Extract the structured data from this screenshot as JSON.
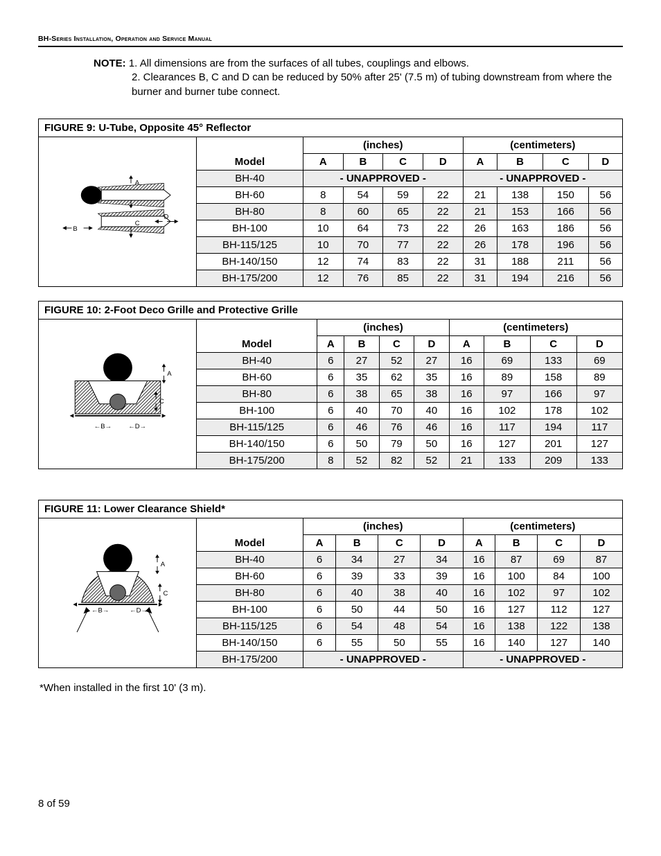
{
  "header": "BH-Series Installation, Operation and Service Manual",
  "note": {
    "prefix": "NOTE:",
    "line1": "1. All dimensions are from the surfaces of all tubes, couplings and elbows.",
    "line2": "2. Clearances B, C and D can be reduced by 50% after 25' (7.5 m) of tubing downstream from where the burner and burner tube connect."
  },
  "units": {
    "inches": "(inches)",
    "cm": "(centimeters)",
    "model": "Model"
  },
  "cols": [
    "A",
    "B",
    "C",
    "D"
  ],
  "unapproved": "- UNAPPROVED -",
  "footnote": "*When installed in the first 10' (3 m).",
  "pageNum": "8 of 59",
  "figures": [
    {
      "title": "FIGURE 9: U-Tube, Opposite 45° Reflector",
      "diagram": "fig9",
      "rows": [
        {
          "model": "BH-40",
          "unapproved": true
        },
        {
          "model": "BH-60",
          "in": [
            8,
            54,
            59,
            22
          ],
          "cm": [
            21,
            138,
            150,
            56
          ]
        },
        {
          "model": "BH-80",
          "in": [
            8,
            60,
            65,
            22
          ],
          "cm": [
            21,
            153,
            166,
            56
          ]
        },
        {
          "model": "BH-100",
          "in": [
            10,
            64,
            73,
            22
          ],
          "cm": [
            26,
            163,
            186,
            56
          ]
        },
        {
          "model": "BH-115/125",
          "in": [
            10,
            70,
            77,
            22
          ],
          "cm": [
            26,
            178,
            196,
            56
          ]
        },
        {
          "model": "BH-140/150",
          "in": [
            12,
            74,
            83,
            22
          ],
          "cm": [
            31,
            188,
            211,
            56
          ]
        },
        {
          "model": "BH-175/200",
          "in": [
            12,
            76,
            85,
            22
          ],
          "cm": [
            31,
            194,
            216,
            56
          ]
        }
      ]
    },
    {
      "title": "FIGURE 10: 2-Foot Deco Grille and Protective Grille",
      "diagram": "fig10",
      "rows": [
        {
          "model": "BH-40",
          "in": [
            6,
            27,
            52,
            27
          ],
          "cm": [
            16,
            69,
            133,
            69
          ]
        },
        {
          "model": "BH-60",
          "in": [
            6,
            35,
            62,
            35
          ],
          "cm": [
            16,
            89,
            158,
            89
          ]
        },
        {
          "model": "BH-80",
          "in": [
            6,
            38,
            65,
            38
          ],
          "cm": [
            16,
            97,
            166,
            97
          ]
        },
        {
          "model": "BH-100",
          "in": [
            6,
            40,
            70,
            40
          ],
          "cm": [
            16,
            102,
            178,
            102
          ]
        },
        {
          "model": "BH-115/125",
          "in": [
            6,
            46,
            76,
            46
          ],
          "cm": [
            16,
            117,
            194,
            117
          ]
        },
        {
          "model": "BH-140/150",
          "in": [
            6,
            50,
            79,
            50
          ],
          "cm": [
            16,
            127,
            201,
            127
          ]
        },
        {
          "model": "BH-175/200",
          "in": [
            8,
            52,
            82,
            52
          ],
          "cm": [
            21,
            133,
            209,
            133
          ]
        }
      ]
    },
    {
      "title": "FIGURE 11: Lower Clearance Shield*",
      "diagram": "fig11",
      "rows": [
        {
          "model": "BH-40",
          "in": [
            6,
            34,
            27,
            34
          ],
          "cm": [
            16,
            87,
            69,
            87
          ]
        },
        {
          "model": "BH-60",
          "in": [
            6,
            39,
            33,
            39
          ],
          "cm": [
            16,
            100,
            84,
            100
          ]
        },
        {
          "model": "BH-80",
          "in": [
            6,
            40,
            38,
            40
          ],
          "cm": [
            16,
            102,
            97,
            102
          ]
        },
        {
          "model": "BH-100",
          "in": [
            6,
            50,
            44,
            50
          ],
          "cm": [
            16,
            127,
            112,
            127
          ]
        },
        {
          "model": "BH-115/125",
          "in": [
            6,
            54,
            48,
            54
          ],
          "cm": [
            16,
            138,
            122,
            138
          ]
        },
        {
          "model": "BH-140/150",
          "in": [
            6,
            55,
            50,
            55
          ],
          "cm": [
            16,
            140,
            127,
            140
          ]
        },
        {
          "model": "BH-175/200",
          "unapproved": true
        }
      ]
    }
  ],
  "style": {
    "shadeColor": "#ececec",
    "borderColor": "#000000",
    "font": "Arial",
    "modelColWidth": 120,
    "dataColWidth": 50
  }
}
